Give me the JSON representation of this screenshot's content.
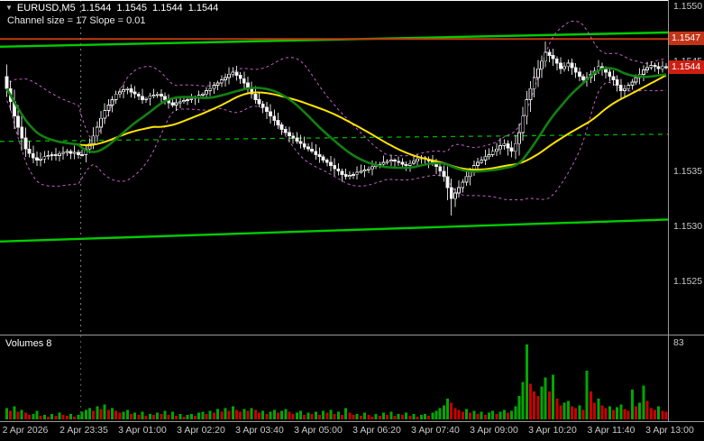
{
  "window": {
    "dropdown_icon": "▼",
    "symbol": "EURUSD,M5",
    "ohlc": {
      "open": "1.1544",
      "high": "1.1545",
      "low": "1.1544",
      "close": "1.1544"
    },
    "indicator_caption": "Channel size = 17  Slope = 0.01"
  },
  "price_axis": {
    "labels": [
      {
        "text": "1.1550",
        "pip": 50
      },
      {
        "text": "1.1545",
        "pip": 45
      },
      {
        "text": "1.1535",
        "pip": 35
      },
      {
        "text": "1.1530",
        "pip": 30
      },
      {
        "text": "1.1525",
        "pip": 25
      }
    ],
    "tags": [
      {
        "text": "1.1547",
        "pip": 47.0,
        "color": "#c23418"
      },
      {
        "text": "1.1544",
        "pip": 44.4,
        "color": "#cc1f12"
      }
    ]
  },
  "time_axis": {
    "labels": [
      "2 Apr 2026",
      "2 Apr 23:35",
      "3 Apr 01:00",
      "3 Apr 02:20",
      "3 Apr 03:40",
      "3 Apr 05:00",
      "3 Apr 06:20",
      "3 Apr 07:40",
      "3 Apr 09:00",
      "3 Apr 10:20",
      "3 Apr 11:40",
      "3 Apr 13:00"
    ]
  },
  "volume_pane": {
    "label": "Volumes 8",
    "current_volume": 8,
    "scale_max_label": "83"
  },
  "colors": {
    "background": "#000000",
    "channel_green": "#00cc00",
    "mid_line_green": "#00b400",
    "resistance_orange": "#c03a10",
    "ma_yellow": "#ffe400",
    "ma_green": "#128012",
    "bollinger": "#c95fc9",
    "candle_outline": "#e8e8e8",
    "bull_fill": "#000000",
    "bear_fill": "#ffffff",
    "wick": "#d8d8d8",
    "volume_up": "#00a800",
    "volume_down": "#c80000",
    "axis_text": "#c9c9c9",
    "separator_gray": "#9a9a9a"
  },
  "chart_data": {
    "type": "candlestick+volume",
    "symbol": "EURUSD",
    "timeframe": "M5",
    "title": "EURUSD,M5 1.1544 1.1545 1.1544 1.1544",
    "current_bar": {
      "open": 1.1544,
      "high": 1.1545,
      "low": 1.1544,
      "close": 1.1544
    },
    "price_base": 1.15,
    "pip_unit": 0.0001,
    "ylim_pips": [
      22.2,
      50.55
    ],
    "first_open_pip": 43.6,
    "closes_pips": [
      42.5,
      41.3,
      40.0,
      39.0,
      38.0,
      37.0,
      36.6,
      36.2,
      36.0,
      36.1,
      36.3,
      36.4,
      36.5,
      36.4,
      36.6,
      36.7,
      36.8,
      36.6,
      36.7,
      36.5,
      36.5,
      37.0,
      37.5,
      38.2,
      39.0,
      39.8,
      40.5,
      41.0,
      41.5,
      42.0,
      42.2,
      42.4,
      42.5,
      42.2,
      42.0,
      41.8,
      41.5,
      41.6,
      41.8,
      41.9,
      42.0,
      41.8,
      41.5,
      41.2,
      41.0,
      41.2,
      41.3,
      41.4,
      41.5,
      41.6,
      41.7,
      41.9,
      42.0,
      42.3,
      42.5,
      42.8,
      43.0,
      43.3,
      43.5,
      43.8,
      44.0,
      43.7,
      43.4,
      43.0,
      42.5,
      42.0,
      41.5,
      41.1,
      40.8,
      40.4,
      40.0,
      39.6,
      39.2,
      38.8,
      38.5,
      38.2,
      38.0,
      37.7,
      37.5,
      37.2,
      37.0,
      36.8,
      36.5,
      36.3,
      36.0,
      35.8,
      35.5,
      35.2,
      35.0,
      34.7,
      34.5,
      34.6,
      34.7,
      34.9,
      35.0,
      35.1,
      35.2,
      35.4,
      35.5,
      35.6,
      35.8,
      35.9,
      36.0,
      35.9,
      35.8,
      35.6,
      35.5,
      35.7,
      35.9,
      36.1,
      36.2,
      36.1,
      35.9,
      35.8,
      35.4,
      35.0,
      34.5,
      33.5,
      32.5,
      33.0,
      33.5,
      34.0,
      34.5,
      35.0,
      35.5,
      35.8,
      36.0,
      36.3,
      36.5,
      36.8,
      37.0,
      37.3,
      37.5,
      37.1,
      36.8,
      37.5,
      38.5,
      40.0,
      41.5,
      42.5,
      43.5,
      44.3,
      45.0,
      45.8,
      45.5,
      45.2,
      44.8,
      44.3,
      44.5,
      44.8,
      44.4,
      44.0,
      43.6,
      43.3,
      43.5,
      43.8,
      44.1,
      44.5,
      44.3,
      44.0,
      43.6,
      43.3,
      42.8,
      42.3,
      42.5,
      42.8,
      43.1,
      43.5,
      43.8,
      44.2,
      44.4,
      44.6,
      44.5,
      44.3,
      44.5,
      44.4
    ],
    "volumes": [
      12,
      9,
      14,
      8,
      10,
      7,
      5,
      6,
      9,
      4,
      5,
      3,
      6,
      4,
      7,
      5,
      4,
      6,
      3,
      5,
      8,
      10,
      12,
      9,
      14,
      11,
      16,
      10,
      12,
      9,
      7,
      8,
      10,
      6,
      7,
      5,
      8,
      4,
      6,
      5,
      7,
      6,
      9,
      5,
      8,
      4,
      6,
      3,
      5,
      6,
      4,
      7,
      8,
      6,
      9,
      7,
      11,
      8,
      12,
      9,
      14,
      10,
      8,
      11,
      9,
      12,
      10,
      7,
      9,
      6,
      8,
      10,
      7,
      9,
      11,
      8,
      6,
      7,
      9,
      5,
      7,
      6,
      8,
      5,
      9,
      7,
      10,
      6,
      8,
      5,
      12,
      7,
      5,
      6,
      4,
      7,
      5,
      3,
      6,
      4,
      7,
      5,
      8,
      4,
      6,
      5,
      7,
      4,
      6,
      3,
      5,
      6,
      4,
      7,
      9,
      12,
      15,
      22,
      18,
      12,
      10,
      8,
      11,
      7,
      9,
      6,
      8,
      5,
      7,
      9,
      6,
      8,
      10,
      7,
      9,
      14,
      25,
      40,
      80,
      38,
      30,
      25,
      35,
      45,
      30,
      48,
      22,
      15,
      18,
      20,
      14,
      12,
      15,
      10,
      52,
      30,
      18,
      22,
      15,
      12,
      14,
      10,
      13,
      16,
      11,
      9,
      32,
      14,
      18,
      36,
      20,
      12,
      10,
      14,
      9,
      8
    ],
    "volume_scale_max": 83,
    "indicators": {
      "bollinger": {
        "period": 20,
        "deviation": 2
      },
      "ma_fast_green": {
        "period": 20
      },
      "ma_slow_yellow": {
        "period": 40
      },
      "channel": {
        "size_pips": 17,
        "slope": 0.01
      }
    },
    "levels": {
      "resistance_pip": 47.0,
      "channel_upper": {
        "start_pip": 46.3,
        "end_pip": 47.6
      },
      "channel_lower": {
        "start_pip": 28.6,
        "end_pip": 30.6
      },
      "channel_mid_dashed": {
        "start_pip": 37.7,
        "end_pip": 38.35
      },
      "day_separator_index": 20
    }
  }
}
